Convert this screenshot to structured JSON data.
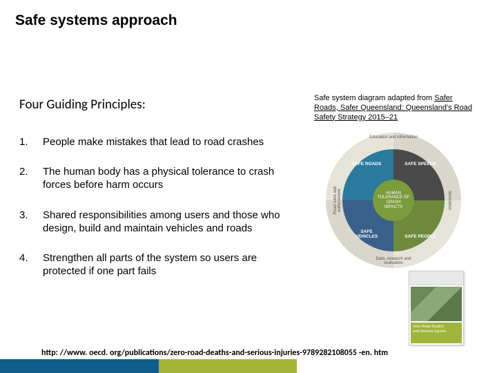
{
  "slide": {
    "title": "Safe systems approach",
    "subtitle": "Four Guiding Principles:",
    "caption_prefix": "Safe system diagram adapted from ",
    "caption_link": "Safer Roads, Safer Queensland: Queensland's Road Safety Strategy 2015–21",
    "principles": [
      "People make mistakes that lead to road crashes",
      "The human body has a physical tolerance to crash forces before harm occurs",
      "Shared responsibilities among users and those who design, build and maintain vehicles and roads",
      "Strengthen all parts of the system so users are protected if one part fails"
    ],
    "source_url": "http: //www. oecd. org/publications/zero-road-deaths-and-serious-injuries-9789282108055 -en. htm"
  },
  "diagram": {
    "type": "pie",
    "center_label": "HUMAN TOLERANCE OF CRASH IMPACTS",
    "quadrants": [
      {
        "label": "SAFE ROADS",
        "color_inner": "#4a4a4a"
      },
      {
        "label": "SAFE SPEEDS",
        "color_inner": "#6e8a3c"
      },
      {
        "label": "SAFE PEOPLE",
        "color_inner": "#3a5f8a"
      },
      {
        "label": "SAFE VEHICLES",
        "color_inner": "#2a7a9e"
      }
    ],
    "outer_arcs": [
      "Education and information",
      "Innovation",
      "Data, research and evaluation",
      "Road rules and enforcement"
    ],
    "center_color": "#7a9c3c",
    "outer_ring_colors": [
      "#d9d6cc",
      "#e6e3d9"
    ],
    "background_color": "#ffffff"
  },
  "thumbnail": {
    "title_line1": "Zero Road Deaths",
    "title_line2": "and Serious Injuries",
    "band_color": "#9fb53c"
  },
  "footer": {
    "left_color": "#0e5d8a",
    "mid_color": "#a3b539",
    "right_color": "#ffffff"
  }
}
